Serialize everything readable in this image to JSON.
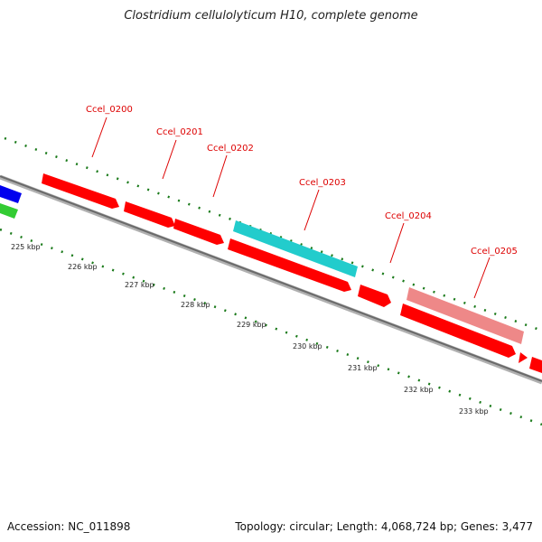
{
  "title": "Clostridium cellulolyticum H10, complete genome",
  "footer": {
    "accession_text": "Accession: NC_011898",
    "stats_text": "Topology: circular; Length: 4,068,724 bp; Genes: 3,477"
  },
  "colors": {
    "backbone": "#808080",
    "tick": "#1a7a1a",
    "label_red": "#dd0000",
    "gene_red": "#ff0000",
    "gene_cyan": "#22cccc",
    "gene_pink": "#ee8888",
    "gene_blue": "#0000ee",
    "gene_green": "#33cc33"
  },
  "scale_labels": [
    "225 kbp",
    "226 kbp",
    "227 kbp",
    "228 kbp",
    "229 kbp",
    "230 kbp",
    "231 kbp",
    "232 kbp",
    "233 kbp"
  ],
  "gene_labels": [
    "Ccel_0200",
    "Ccel_0201",
    "Ccel_0202",
    "Ccel_0203",
    "Ccel_0204",
    "Ccel_0205"
  ]
}
